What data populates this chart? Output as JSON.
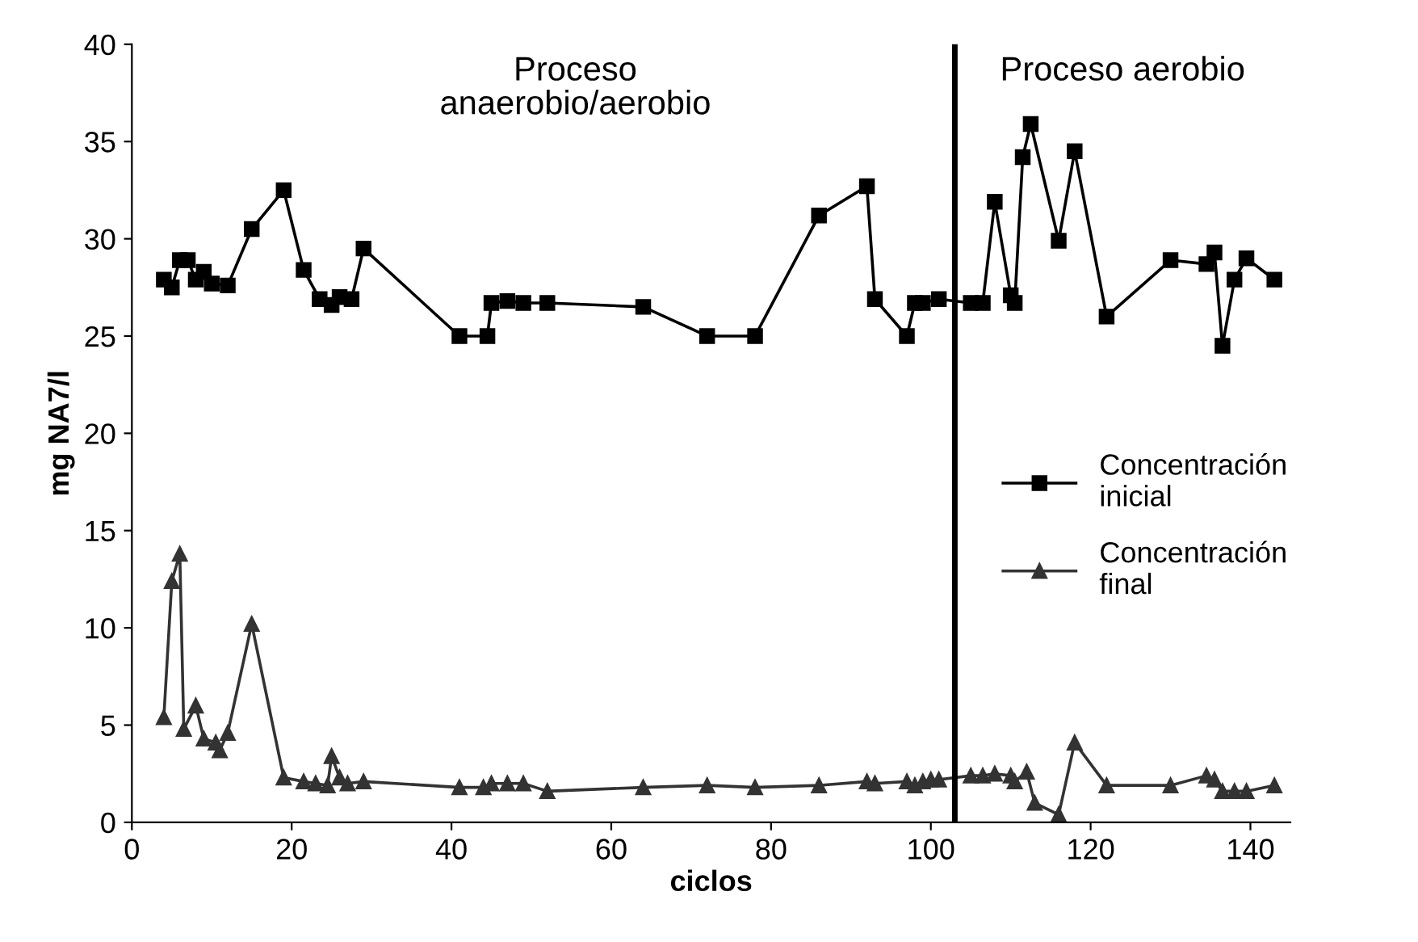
{
  "chart_data": {
    "type": "line",
    "xlabel": "ciclos",
    "ylabel": "mg NA7/l",
    "xlim": [
      0,
      145
    ],
    "xticks": [
      0,
      20,
      40,
      60,
      80,
      100,
      120,
      140
    ],
    "ylim": [
      0,
      40
    ],
    "yticks": [
      0,
      5,
      10,
      15,
      20,
      25,
      30,
      35,
      40
    ],
    "grid": false,
    "legend": "right",
    "series": [
      {
        "name": "Concentración\ninicial",
        "color": "#000000",
        "marker": "square",
        "x": [
          4,
          5,
          6,
          7,
          8,
          9,
          10,
          12,
          15,
          19,
          21.5,
          23.5,
          25,
          26,
          27.5,
          29,
          41,
          44.5,
          45,
          47,
          49,
          52,
          64,
          72,
          78,
          86,
          92,
          93,
          97,
          98,
          99,
          101,
          105,
          106.5,
          108,
          110,
          110.5,
          111.5,
          112.5,
          116,
          118,
          122,
          130,
          134.5,
          135.5,
          136.5,
          138,
          139.5,
          143
        ],
        "values": [
          27.9,
          27.5,
          28.9,
          28.9,
          27.9,
          28.3,
          27.7,
          27.6,
          30.5,
          32.5,
          28.4,
          26.9,
          26.6,
          27.0,
          26.9,
          29.5,
          25.0,
          25.0,
          26.7,
          26.8,
          26.7,
          26.7,
          26.5,
          25.0,
          25.0,
          31.2,
          32.7,
          26.9,
          25.0,
          26.7,
          26.7,
          26.9,
          26.7,
          26.7,
          31.9,
          27.1,
          26.7,
          34.2,
          35.9,
          29.9,
          34.5,
          26.0,
          28.9,
          28.7,
          29.3,
          24.5,
          27.9,
          29.0,
          27.9
        ]
      },
      {
        "name": "Concentración\nfinal",
        "color": "#333333",
        "marker": "triangle",
        "x": [
          4,
          5,
          6,
          6.5,
          8,
          9,
          10.5,
          11,
          12,
          15,
          19,
          21.5,
          23,
          24.5,
          25,
          26,
          27,
          29,
          41,
          44,
          45,
          47,
          49,
          52,
          64,
          72,
          78,
          86,
          92,
          93,
          97,
          98,
          99,
          100,
          101,
          105,
          106.5,
          108,
          110,
          110.5,
          112,
          113,
          116,
          118,
          122,
          130,
          134.5,
          135.5,
          136.5,
          138,
          139.5,
          143
        ],
        "values": [
          5.4,
          12.4,
          13.8,
          4.8,
          6.0,
          4.3,
          4.1,
          3.7,
          4.6,
          10.2,
          2.3,
          2.1,
          2.0,
          1.9,
          3.4,
          2.3,
          2.0,
          2.1,
          1.8,
          1.8,
          2.0,
          2.0,
          2.0,
          1.6,
          1.8,
          1.9,
          1.8,
          1.9,
          2.1,
          2.0,
          2.1,
          1.9,
          2.1,
          2.2,
          2.2,
          2.4,
          2.4,
          2.5,
          2.4,
          2.1,
          2.6,
          1.0,
          0.4,
          4.1,
          1.9,
          1.9,
          2.4,
          2.2,
          1.6,
          1.6,
          1.6,
          1.9
        ]
      }
    ],
    "ref_lines": [
      {
        "axis": "x",
        "value": 103,
        "color": "#000000"
      }
    ],
    "annotations": [
      "Proceso\nanaerobio/aerobio",
      "Proceso aerobio"
    ]
  }
}
